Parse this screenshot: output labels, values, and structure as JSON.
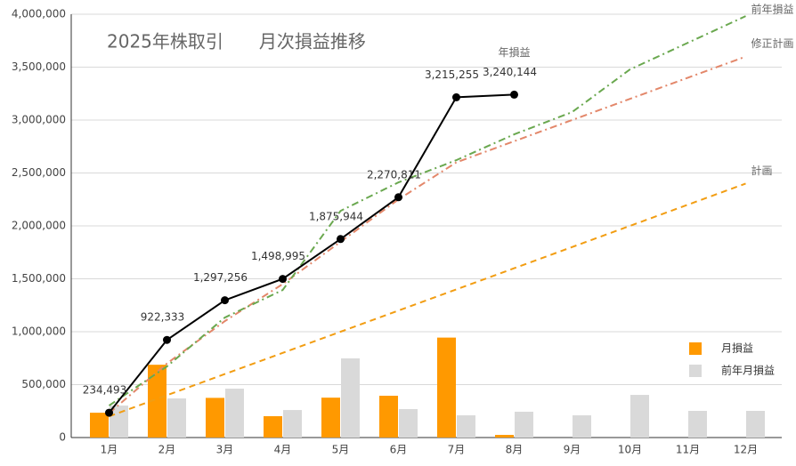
{
  "chart_data": {
    "type": "combo",
    "title": "2025年株取引　　月次損益推移",
    "categories": [
      "1月",
      "2月",
      "3月",
      "4月",
      "5月",
      "6月",
      "7月",
      "8月",
      "9月",
      "10月",
      "11月",
      "12月"
    ],
    "ylim": [
      0,
      4000000
    ],
    "yticks": [
      0,
      {
        "value": 500000,
        "label": "500,000"
      },
      {
        "value": 1000000,
        "label": "1,000,000"
      },
      {
        "value": 1500000,
        "label": "1,500,000"
      },
      {
        "value": 2000000,
        "label": "2,000,000"
      },
      {
        "value": 2500000,
        "label": "2,500,000"
      },
      {
        "value": 3000000,
        "label": "3,000,000"
      },
      {
        "value": 3500000,
        "label": "3,500,000"
      },
      {
        "value": 4000000,
        "label": "4,000,000"
      }
    ],
    "grid": true,
    "legend": "right",
    "series": [
      {
        "name": "月損益",
        "type": "bar",
        "color": "#ff9900",
        "values": [
          234493,
          687840,
          374923,
          201739,
          376949,
          394867,
          944444,
          24889,
          null,
          null,
          null,
          null
        ]
      },
      {
        "name": "前年月損益",
        "type": "bar",
        "color": "#d9d9d9",
        "values": [
          302000,
          370000,
          462000,
          260000,
          748000,
          269000,
          210000,
          244000,
          210000,
          403000,
          252000,
          252000
        ]
      },
      {
        "name": "計画",
        "type": "line",
        "style": "dashed",
        "color": "#f29d12",
        "values": [
          200000,
          400000,
          600000,
          800000,
          1000000,
          1200000,
          1400000,
          1600000,
          1800000,
          2000000,
          2200000,
          2400000
        ]
      },
      {
        "name": "修正計画",
        "type": "line",
        "style": "dashdot",
        "color": "#e3876a",
        "values": [
          230000,
          700000,
          1100000,
          1450000,
          1850000,
          2250000,
          2600000,
          2800000,
          3000000,
          3200000,
          3400000,
          3600000
        ]
      },
      {
        "name": "前年損益",
        "type": "line",
        "style": "dashdot",
        "color": "#6aa84f",
        "values": [
          302000,
          672000,
          1134000,
          1394000,
          2142000,
          2411000,
          2621000,
          2865000,
          3075000,
          3478000,
          3730000,
          3982000
        ]
      },
      {
        "name": "年損益",
        "type": "line",
        "style": "solid",
        "color": "#000000",
        "marker": true,
        "values": [
          234493,
          922333,
          1297256,
          1498995,
          1875944,
          2270811,
          3215255,
          3240144,
          null,
          null,
          null,
          null
        ],
        "value_labels": [
          "234,493",
          "922,333",
          "1,297,256",
          "1,498,995",
          "1,875,944",
          "2,270,811",
          "3,215,255",
          "3,240,144",
          null,
          null,
          null,
          null
        ]
      }
    ]
  }
}
